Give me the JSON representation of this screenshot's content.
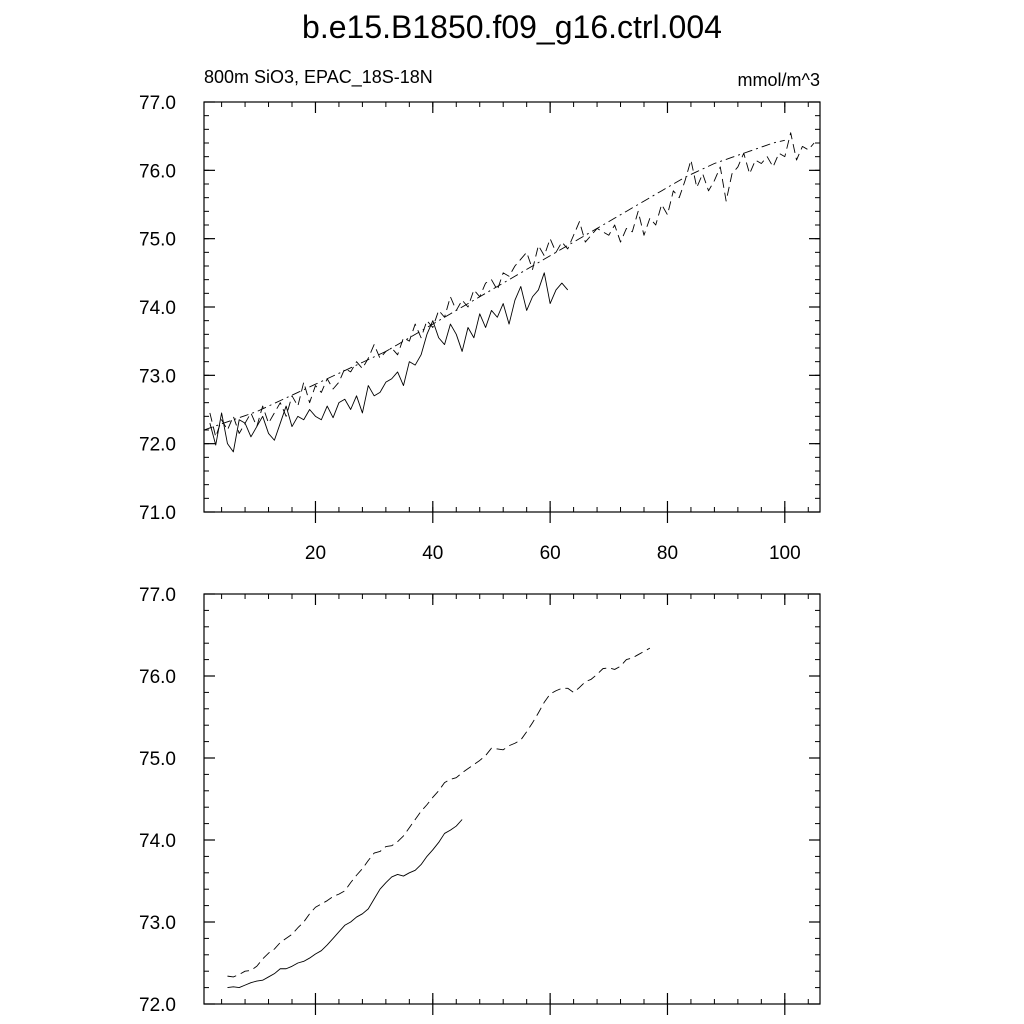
{
  "title": "b.e15.B1850.f09_g16.ctrl.004",
  "panels": {
    "top": {
      "left_label": "800m SiO3, EPAC_18S-18N",
      "right_label": "mmol/m^3"
    }
  },
  "chart_data": [
    {
      "type": "line",
      "panel": "top",
      "xlim": [
        1,
        106
      ],
      "ylim": [
        71.0,
        77.0
      ],
      "x_ticks": [
        20,
        40,
        60,
        80,
        100
      ],
      "x_tick_labels": [
        "20",
        "40",
        "60",
        "80",
        "100"
      ],
      "y_ticks": [
        71.0,
        72.0,
        73.0,
        74.0,
        75.0,
        76.0,
        77.0
      ],
      "y_tick_labels": [
        "71.0",
        "72.0",
        "73.0",
        "74.0",
        "75.0",
        "76.0",
        "77.0"
      ],
      "grid": false,
      "series": [
        {
          "style": "solid",
          "x_start": 2,
          "values": [
            72.3,
            71.98,
            72.45,
            72.0,
            71.88,
            72.35,
            72.3,
            72.1,
            72.25,
            72.4,
            72.15,
            72.05,
            72.3,
            72.55,
            72.25,
            72.4,
            72.35,
            72.5,
            72.4,
            72.35,
            72.55,
            72.38,
            72.6,
            72.65,
            72.5,
            72.7,
            72.45,
            72.85,
            72.7,
            72.75,
            72.9,
            72.95,
            73.05,
            72.85,
            73.2,
            73.15,
            73.3,
            73.6,
            73.8,
            73.55,
            73.45,
            73.75,
            73.6,
            73.35,
            73.7,
            73.55,
            73.9,
            73.7,
            73.95,
            73.85,
            74.05,
            73.75,
            74.1,
            74.3,
            73.95,
            74.15,
            74.25,
            74.5,
            74.05,
            74.25,
            74.35,
            74.25
          ]
        },
        {
          "style": "dashed",
          "x_start": 2,
          "values": [
            72.45,
            72.1,
            72.35,
            72.2,
            72.4,
            72.15,
            72.3,
            72.45,
            72.25,
            72.55,
            72.3,
            72.45,
            72.6,
            72.4,
            72.7,
            72.55,
            72.9,
            72.6,
            72.85,
            72.75,
            72.95,
            72.8,
            72.9,
            73.1,
            73.05,
            73.2,
            73.1,
            73.25,
            73.45,
            73.25,
            73.35,
            73.4,
            73.3,
            73.55,
            73.5,
            73.75,
            73.55,
            73.8,
            73.7,
            73.95,
            73.85,
            74.15,
            73.95,
            74.1,
            74.0,
            74.25,
            74.15,
            74.35,
            74.4,
            74.25,
            74.5,
            74.45,
            74.6,
            74.7,
            74.8,
            74.55,
            74.9,
            74.75,
            75.0,
            74.8,
            74.95,
            74.85,
            75.05,
            75.25,
            74.95,
            75.05,
            75.15,
            75.1,
            75.05,
            75.2,
            74.95,
            75.15,
            75.1,
            75.4,
            75.05,
            75.3,
            75.2,
            75.5,
            75.35,
            75.7,
            75.6,
            75.85,
            76.15,
            75.75,
            75.95,
            75.7,
            75.85,
            76.05,
            75.55,
            75.95,
            76.05,
            76.25,
            75.95,
            76.15,
            76.1,
            76.2,
            76.05,
            76.25,
            76.2,
            76.55,
            76.15,
            76.35,
            76.3,
            76.4
          ]
        },
        {
          "style": "dash-dot",
          "x_start": 1,
          "values": [
            72.2,
            72.23,
            72.26,
            72.29,
            72.32,
            72.35,
            72.38,
            72.41,
            72.44,
            72.47,
            72.51,
            72.55,
            72.59,
            72.63,
            72.67,
            72.71,
            72.75,
            72.79,
            72.83,
            72.87,
            72.91,
            72.95,
            72.99,
            73.03,
            73.07,
            73.11,
            73.15,
            73.19,
            73.23,
            73.27,
            73.31,
            73.35,
            73.4,
            73.45,
            73.5,
            73.55,
            73.6,
            73.65,
            73.7,
            73.75,
            73.8,
            73.85,
            73.9,
            73.95,
            74.0,
            74.05,
            74.1,
            74.15,
            74.2,
            74.25,
            74.3,
            74.35,
            74.4,
            74.45,
            74.5,
            74.55,
            74.6,
            74.65,
            74.7,
            74.75,
            74.8,
            74.85,
            74.9,
            74.95,
            75.0,
            75.05,
            75.1,
            75.15,
            75.2,
            75.25,
            75.3,
            75.35,
            75.4,
            75.45,
            75.5,
            75.55,
            75.6,
            75.65,
            75.7,
            75.75,
            75.8,
            75.85,
            75.9,
            75.94,
            75.98,
            76.02,
            76.06,
            76.1,
            76.13,
            76.16,
            76.19,
            76.22,
            76.25,
            76.28,
            76.31,
            76.34,
            76.37,
            76.4,
            76.42,
            76.44
          ]
        }
      ]
    },
    {
      "type": "line",
      "panel": "bottom",
      "xlim": [
        1,
        106
      ],
      "ylim": [
        72.0,
        77.0
      ],
      "x_ticks": [
        20,
        40,
        60,
        80,
        100
      ],
      "y_ticks": [
        72.0,
        73.0,
        74.0,
        75.0,
        76.0,
        77.0
      ],
      "y_tick_labels": [
        "72.0",
        "73.0",
        "74.0",
        "75.0",
        "76.0",
        "77.0"
      ],
      "grid": false,
      "series": [
        {
          "style": "solid",
          "x_start": 5,
          "values": [
            72.2,
            72.21,
            72.2,
            72.23,
            72.26,
            72.28,
            72.29,
            72.33,
            72.37,
            72.43,
            72.43,
            72.46,
            72.5,
            72.52,
            72.56,
            72.61,
            72.65,
            72.72,
            72.8,
            72.88,
            72.96,
            73.0,
            73.06,
            73.1,
            73.16,
            73.28,
            73.4,
            73.48,
            73.55,
            73.58,
            73.56,
            73.6,
            73.63,
            73.7,
            73.8,
            73.88,
            73.97,
            74.08,
            74.12,
            74.17,
            74.25
          ]
        },
        {
          "style": "dashed",
          "x_start": 5,
          "values": [
            72.34,
            72.33,
            72.36,
            72.4,
            72.41,
            72.46,
            72.55,
            72.62,
            72.67,
            72.75,
            72.8,
            72.85,
            72.93,
            73.0,
            73.1,
            73.18,
            73.22,
            73.26,
            73.31,
            73.34,
            73.38,
            73.48,
            73.57,
            73.65,
            73.75,
            73.84,
            73.86,
            73.92,
            73.93,
            73.98,
            74.05,
            74.15,
            74.25,
            74.35,
            74.43,
            74.52,
            74.6,
            74.7,
            74.74,
            74.76,
            74.82,
            74.87,
            74.92,
            74.97,
            75.03,
            75.12,
            75.11,
            75.1,
            75.15,
            75.18,
            75.22,
            75.32,
            75.43,
            75.55,
            75.68,
            75.78,
            75.82,
            75.85,
            75.85,
            75.8,
            75.86,
            75.93,
            75.96,
            76.02,
            76.09,
            76.1,
            76.08,
            76.12,
            76.2,
            76.22,
            76.26,
            76.3,
            76.34
          ]
        }
      ]
    }
  ]
}
